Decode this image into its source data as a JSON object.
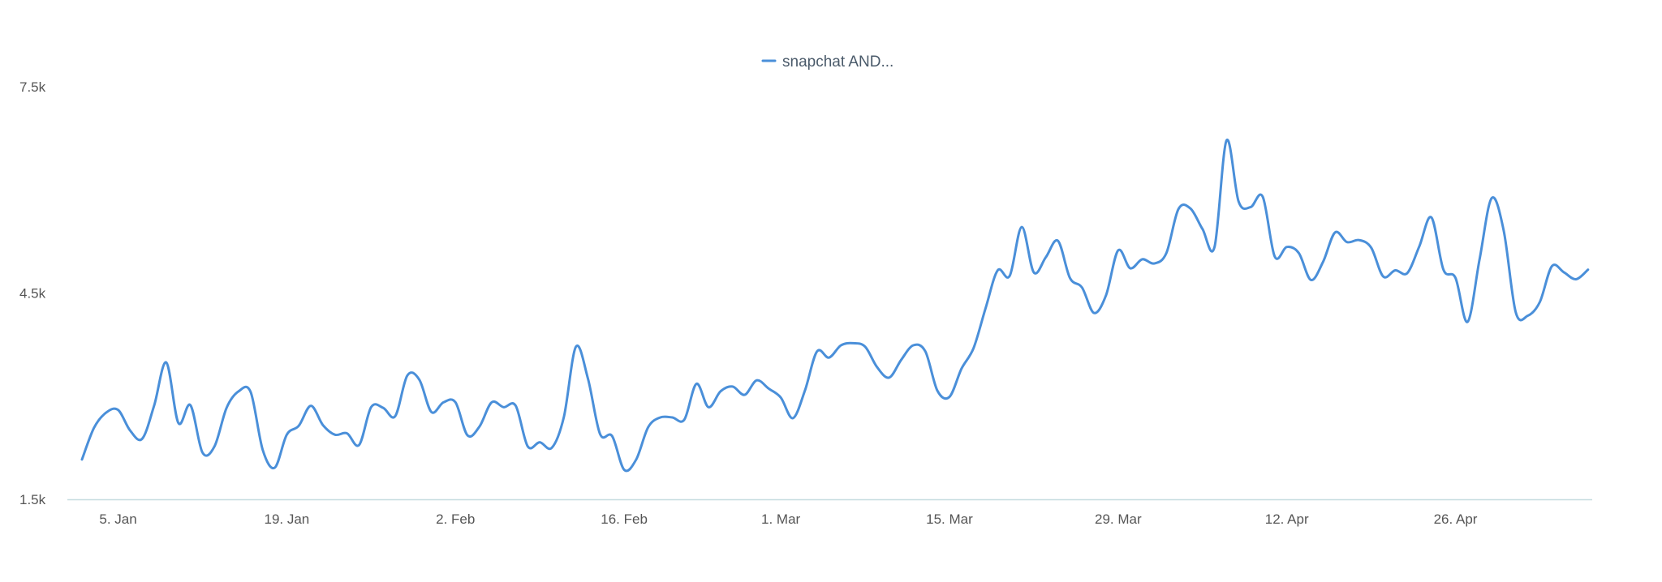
{
  "chart_data": {
    "type": "line",
    "title": "",
    "xlabel": "",
    "ylabel": "",
    "x_range": [
      "2019-01-02",
      "2019-05-06"
    ],
    "ylim": [
      1500,
      7500
    ],
    "y_ticks": [
      {
        "value": 1500,
        "label": "1.5k"
      },
      {
        "value": 4500,
        "label": "4.5k"
      },
      {
        "value": 7500,
        "label": "7.5k"
      }
    ],
    "x_ticks": [
      {
        "date": "2019-01-05",
        "label": "5. Jan"
      },
      {
        "date": "2019-01-19",
        "label": "19. Jan"
      },
      {
        "date": "2019-02-02",
        "label": "2. Feb"
      },
      {
        "date": "2019-02-16",
        "label": "16. Feb"
      },
      {
        "date": "2019-03-01",
        "label": "1. Mar"
      },
      {
        "date": "2019-03-15",
        "label": "15. Mar"
      },
      {
        "date": "2019-03-29",
        "label": "29. Mar"
      },
      {
        "date": "2019-04-12",
        "label": "12. Apr"
      },
      {
        "date": "2019-04-26",
        "label": "26. Apr"
      }
    ],
    "grid": false,
    "legend": {
      "position": "top-center"
    },
    "series": [
      {
        "name": "snapchat AND...",
        "color": "#4a8fd9",
        "points": [
          [
            "2019-01-02",
            2080
          ],
          [
            "2019-01-03",
            2540
          ],
          [
            "2019-01-04",
            2760
          ],
          [
            "2019-01-05",
            2800
          ],
          [
            "2019-01-06",
            2500
          ],
          [
            "2019-01-07",
            2380
          ],
          [
            "2019-01-08",
            2870
          ],
          [
            "2019-01-09",
            3490
          ],
          [
            "2019-01-10",
            2610
          ],
          [
            "2019-01-11",
            2870
          ],
          [
            "2019-01-12",
            2180
          ],
          [
            "2019-01-13",
            2270
          ],
          [
            "2019-01-14",
            2830
          ],
          [
            "2019-01-15",
            3070
          ],
          [
            "2019-01-16",
            3060
          ],
          [
            "2019-01-17",
            2220
          ],
          [
            "2019-01-18",
            1960
          ],
          [
            "2019-01-19",
            2440
          ],
          [
            "2019-01-20",
            2570
          ],
          [
            "2019-01-21",
            2860
          ],
          [
            "2019-01-22",
            2580
          ],
          [
            "2019-01-23",
            2440
          ],
          [
            "2019-01-24",
            2460
          ],
          [
            "2019-01-25",
            2290
          ],
          [
            "2019-01-26",
            2840
          ],
          [
            "2019-01-27",
            2830
          ],
          [
            "2019-01-28",
            2710
          ],
          [
            "2019-01-29",
            3300
          ],
          [
            "2019-01-30",
            3240
          ],
          [
            "2019-01-31",
            2770
          ],
          [
            "2019-02-01",
            2910
          ],
          [
            "2019-02-02",
            2910
          ],
          [
            "2019-02-03",
            2430
          ],
          [
            "2019-02-04",
            2560
          ],
          [
            "2019-02-05",
            2910
          ],
          [
            "2019-02-06",
            2840
          ],
          [
            "2019-02-07",
            2860
          ],
          [
            "2019-02-08",
            2270
          ],
          [
            "2019-02-09",
            2330
          ],
          [
            "2019-02-10",
            2250
          ],
          [
            "2019-02-11",
            2700
          ],
          [
            "2019-02-12",
            3720
          ],
          [
            "2019-02-13",
            3250
          ],
          [
            "2019-02-14",
            2450
          ],
          [
            "2019-02-15",
            2420
          ],
          [
            "2019-02-16",
            1930
          ],
          [
            "2019-02-17",
            2080
          ],
          [
            "2019-02-18",
            2550
          ],
          [
            "2019-02-19",
            2690
          ],
          [
            "2019-02-20",
            2690
          ],
          [
            "2019-02-21",
            2660
          ],
          [
            "2019-02-22",
            3180
          ],
          [
            "2019-02-23",
            2840
          ],
          [
            "2019-02-24",
            3070
          ],
          [
            "2019-02-25",
            3140
          ],
          [
            "2019-02-26",
            3020
          ],
          [
            "2019-02-27",
            3230
          ],
          [
            "2019-02-28",
            3110
          ],
          [
            "2019-03-01",
            2980
          ],
          [
            "2019-03-02",
            2680
          ],
          [
            "2019-03-03",
            3080
          ],
          [
            "2019-03-04",
            3650
          ],
          [
            "2019-03-05",
            3560
          ],
          [
            "2019-03-06",
            3740
          ],
          [
            "2019-03-07",
            3770
          ],
          [
            "2019-03-08",
            3720
          ],
          [
            "2019-03-09",
            3420
          ],
          [
            "2019-03-10",
            3270
          ],
          [
            "2019-03-11",
            3530
          ],
          [
            "2019-03-12",
            3740
          ],
          [
            "2019-03-13",
            3650
          ],
          [
            "2019-03-14",
            3080
          ],
          [
            "2019-03-15",
            2990
          ],
          [
            "2019-03-16",
            3400
          ],
          [
            "2019-03-17",
            3700
          ],
          [
            "2019-03-18",
            4280
          ],
          [
            "2019-03-19",
            4830
          ],
          [
            "2019-03-20",
            4750
          ],
          [
            "2019-03-21",
            5460
          ],
          [
            "2019-03-22",
            4800
          ],
          [
            "2019-03-23",
            5020
          ],
          [
            "2019-03-24",
            5260
          ],
          [
            "2019-03-25",
            4720
          ],
          [
            "2019-03-26",
            4580
          ],
          [
            "2019-03-27",
            4210
          ],
          [
            "2019-03-28",
            4470
          ],
          [
            "2019-03-29",
            5120
          ],
          [
            "2019-03-30",
            4860
          ],
          [
            "2019-03-31",
            4990
          ],
          [
            "2019-04-01",
            4930
          ],
          [
            "2019-04-02",
            5080
          ],
          [
            "2019-04-03",
            5720
          ],
          [
            "2019-04-04",
            5730
          ],
          [
            "2019-04-05",
            5430
          ],
          [
            "2019-04-06",
            5170
          ],
          [
            "2019-04-07",
            6720
          ],
          [
            "2019-04-08",
            5830
          ],
          [
            "2019-04-09",
            5750
          ],
          [
            "2019-04-10",
            5900
          ],
          [
            "2019-04-11",
            5030
          ],
          [
            "2019-04-12",
            5170
          ],
          [
            "2019-04-13",
            5080
          ],
          [
            "2019-04-14",
            4690
          ],
          [
            "2019-04-15",
            4950
          ],
          [
            "2019-04-16",
            5380
          ],
          [
            "2019-04-17",
            5240
          ],
          [
            "2019-04-18",
            5270
          ],
          [
            "2019-04-19",
            5160
          ],
          [
            "2019-04-20",
            4740
          ],
          [
            "2019-04-21",
            4830
          ],
          [
            "2019-04-22",
            4790
          ],
          [
            "2019-04-23",
            5180
          ],
          [
            "2019-04-24",
            5600
          ],
          [
            "2019-04-25",
            4840
          ],
          [
            "2019-04-26",
            4720
          ],
          [
            "2019-04-27",
            4080
          ],
          [
            "2019-04-28",
            4990
          ],
          [
            "2019-04-29",
            5880
          ],
          [
            "2019-04-30",
            5410
          ],
          [
            "2019-05-01",
            4220
          ],
          [
            "2019-05-02",
            4170
          ],
          [
            "2019-05-03",
            4370
          ],
          [
            "2019-05-04",
            4890
          ],
          [
            "2019-05-05",
            4800
          ],
          [
            "2019-05-06",
            4700
          ],
          [
            "2019-05-07",
            4840
          ]
        ]
      }
    ]
  }
}
